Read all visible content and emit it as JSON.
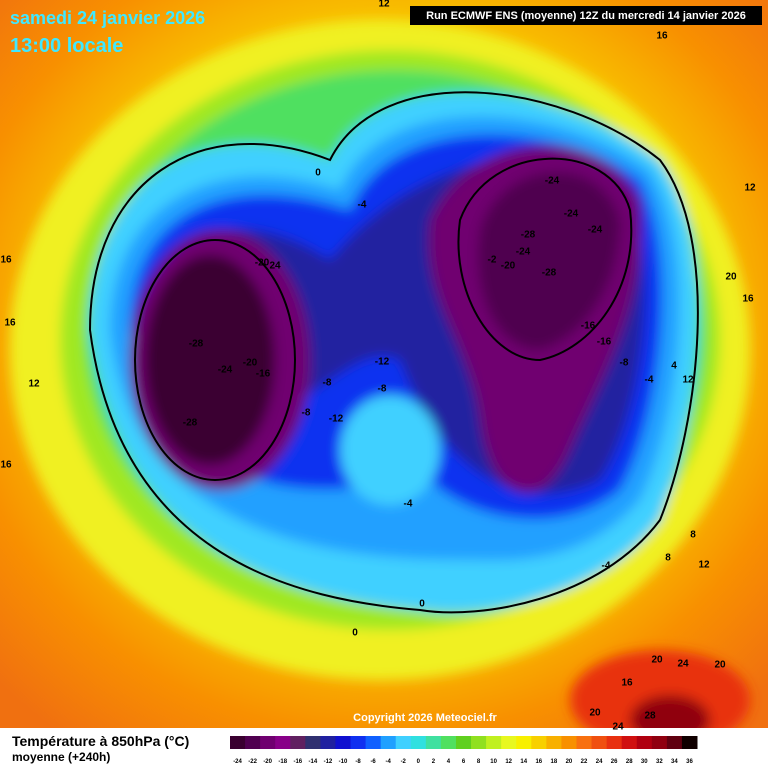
{
  "header": {
    "title": "samedi 24 janvier 2026",
    "time": "13:00 locale",
    "run": "Run ECMWF ENS (moyenne) 12Z du mercredi 14 janvier 2026"
  },
  "contour_labels": [
    "12",
    "16",
    "12",
    "16",
    "16",
    "12",
    "16",
    "0",
    "-4",
    "-24",
    "-24",
    "-24",
    "-28",
    "-24",
    "-2",
    "-20",
    "-28",
    "-20",
    "24",
    "-28",
    "-24",
    "-20",
    "-16",
    "-28",
    "-12",
    "-8",
    "-8",
    "-8",
    "-12",
    "-16",
    "-16",
    "-8",
    "-4",
    "12",
    "4",
    "-4",
    "20",
    "16",
    "8",
    "8",
    "12",
    "-4",
    "0",
    "0",
    "20",
    "24",
    "20",
    "16",
    "20",
    "28",
    "24"
  ],
  "copyright": "Copyright 2026 Meteociel.fr",
  "legend": {
    "title": "Température à 850hPa (°C)",
    "subtitle": "moyenne  (+240h)",
    "labels": [
      "-24",
      "-22",
      "-20",
      "-18",
      "-16",
      "-14",
      "-12",
      "-10",
      "-8",
      "-6",
      "-4",
      "-2",
      "0",
      "2",
      "4",
      "6",
      "8",
      "10",
      "12",
      "14",
      "16",
      "18",
      "20",
      "22",
      "24",
      "26",
      "28",
      "30",
      "32",
      "34",
      "36"
    ],
    "colors": [
      "#3a0030",
      "#500050",
      "#700070",
      "#880088",
      "#602060",
      "#303070",
      "#2020a0",
      "#1010d0",
      "#1030f0",
      "#1060ff",
      "#20a0ff",
      "#40d0ff",
      "#30e0e0",
      "#40e0a0",
      "#50e060",
      "#60d020",
      "#90e020",
      "#c0f020",
      "#e8f820",
      "#f8f000",
      "#f8d000",
      "#f8b000",
      "#f89000",
      "#f87010",
      "#f05010",
      "#e83010",
      "#d01010",
      "#b00010",
      "#900010",
      "#600010",
      "#100000"
    ]
  }
}
